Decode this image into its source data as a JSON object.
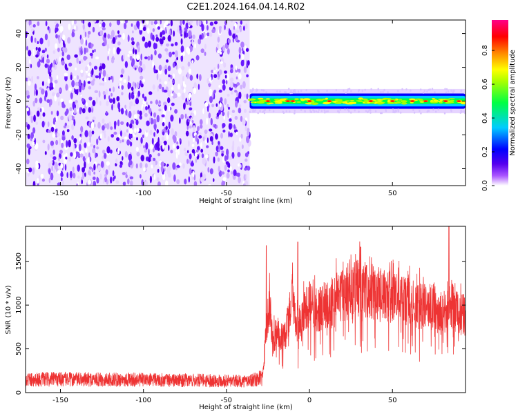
{
  "title": "C2E1.2024.164.04.14.R02",
  "chart_data": [
    {
      "type": "heatmap",
      "xlabel": "Height of straight line (km)",
      "ylabel": "Frequency (Hz)",
      "xlim": [
        -171,
        94
      ],
      "ylim": [
        -50,
        48
      ],
      "xticks": [
        -150,
        -100,
        -50,
        0,
        50
      ],
      "yticks": [
        -40,
        -20,
        0,
        20,
        40
      ],
      "grid": false,
      "noise_region": {
        "x": [
          -171,
          -36
        ],
        "y": [
          -50,
          48
        ],
        "level": "low (0.0-0.3)"
      },
      "signal_band": {
        "x": [
          -36,
          94
        ],
        "center_hz": 0,
        "half_width_hz": 3,
        "peak_positions_km": [
          -25,
          -13,
          -10,
          0,
          12,
          37,
          50,
          62,
          70,
          82,
          90
        ],
        "level": "high (0.5-1.0)"
      },
      "colorbar": {
        "label": "Normalized spectral amplitude",
        "range": [
          0.0,
          0.98
        ],
        "ticks": [
          "0.0",
          "0.2",
          "0.4",
          "0.6",
          "0.8"
        ],
        "colormap": [
          "#ffffff",
          "#5500ee",
          "#0000ff",
          "#00ccff",
          "#00ff44",
          "#ffff00",
          "#ff8800",
          "#ff0000",
          "#ff0088"
        ]
      }
    },
    {
      "type": "line",
      "xlabel": "Height of straight line (km)",
      "ylabel": "SNR (10 * v/v)",
      "xlim": [
        -171,
        94
      ],
      "ylim": [
        0,
        1900
      ],
      "xticks": [
        -150,
        -100,
        -50,
        0,
        50
      ],
      "yticks": [
        0,
        500,
        1000,
        1500
      ],
      "grid": false,
      "color": "#ee3333",
      "x": [
        -171,
        -160,
        -150,
        -140,
        -130,
        -120,
        -110,
        -100,
        -90,
        -80,
        -70,
        -60,
        -50,
        -40,
        -32,
        -28,
        -26,
        -24,
        -22,
        -20,
        -18,
        -15,
        -12,
        -10,
        -8,
        -5,
        0,
        5,
        10,
        15,
        20,
        25,
        30,
        35,
        40,
        45,
        50,
        55,
        60,
        65,
        70,
        75,
        80,
        83,
        86,
        90,
        94
      ],
      "y": [
        150,
        150,
        155,
        150,
        150,
        148,
        150,
        145,
        145,
        140,
        140,
        140,
        135,
        130,
        150,
        200,
        700,
        1000,
        600,
        650,
        700,
        600,
        900,
        1100,
        700,
        850,
        1000,
        950,
        1000,
        1080,
        1100,
        1150,
        1200,
        1180,
        1130,
        1120,
        1100,
        1050,
        1020,
        1000,
        980,
        970,
        900,
        1000,
        1000,
        900,
        900
      ],
      "spike_peaks": [
        {
          "x": -26,
          "y": 1680
        },
        {
          "x": -7,
          "y": 1720
        },
        {
          "x": 84,
          "y": 1900
        }
      ]
    }
  ]
}
